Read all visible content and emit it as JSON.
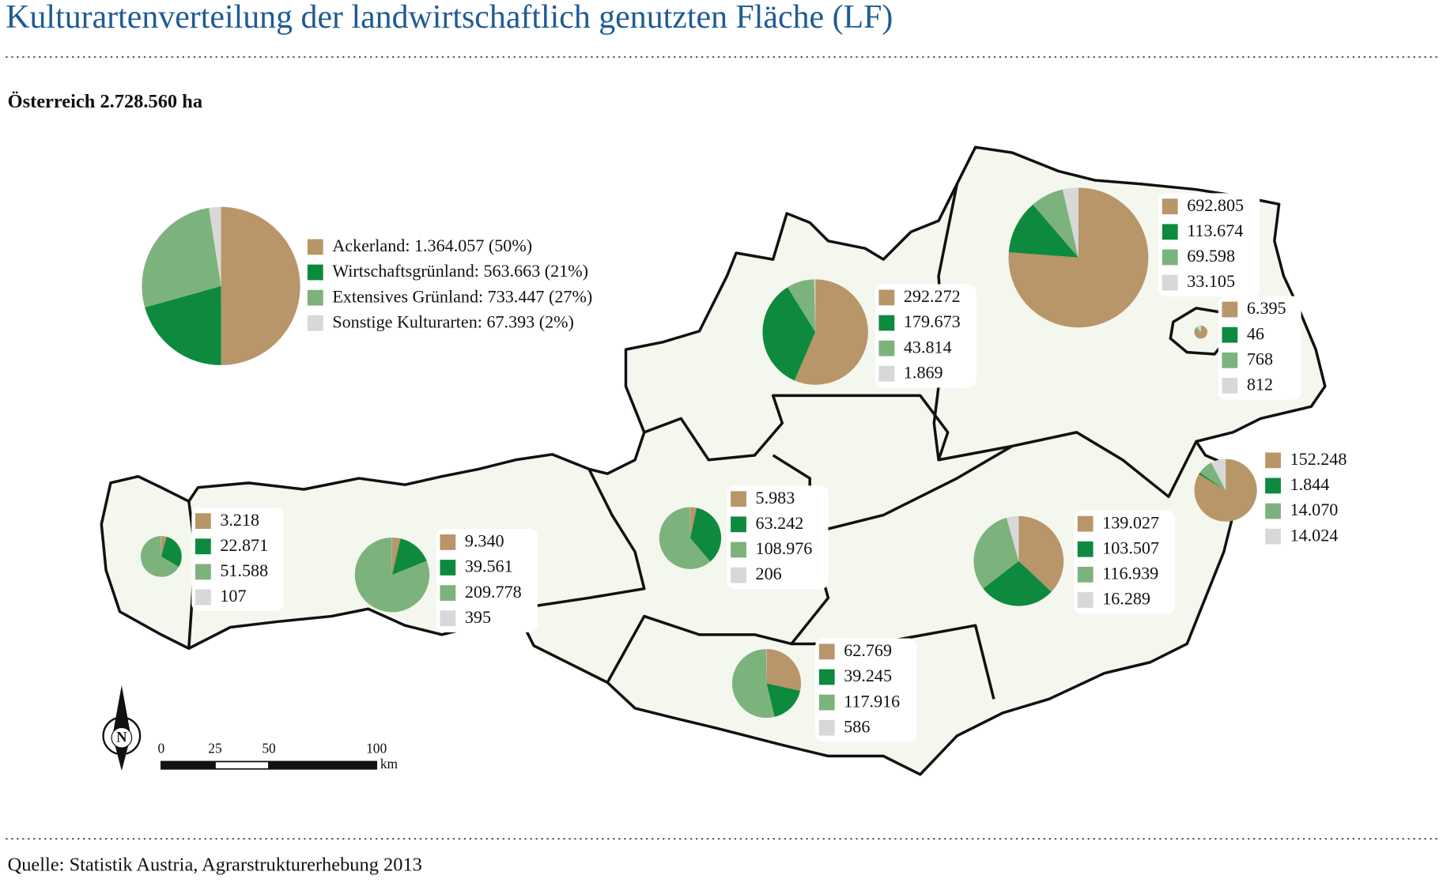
{
  "title": "Kulturartenverteilung der landwirtschaftlich genutzten Fläche (LF)",
  "subtitle": "Österreich 2.728.560 ha",
  "source": "Quelle: Statistik Austria, Agrarstrukturerhebung 2013",
  "colors": [
    "#b9956a",
    "#0d8a3e",
    "#7cb27b",
    "#d8d8d8"
  ],
  "total": {
    "values": [
      1364057,
      563663,
      733447,
      67393
    ],
    "labels": [
      "Ackerland: 1.364.057 (50%)",
      "Wirtschaftsgrünland: 563.663 (21%)",
      "Extensives Grünland: 733.447 (27%)",
      "Sonstige Kulturarten: 67.393 (2%)"
    ]
  },
  "regions": [
    {
      "values": [
        3218,
        22871,
        51588,
        107
      ],
      "value_labels": [
        "3.218",
        "22.871",
        "51.588",
        "107"
      ]
    },
    {
      "values": [
        9340,
        39561,
        209778,
        395
      ],
      "value_labels": [
        "9.340",
        "39.561",
        "209.778",
        "395"
      ]
    },
    {
      "values": [
        5983,
        63242,
        108976,
        206
      ],
      "value_labels": [
        "5.983",
        "63.242",
        "108.976",
        "206"
      ]
    },
    {
      "values": [
        292272,
        179673,
        43814,
        1869
      ],
      "value_labels": [
        "292.272",
        "179.673",
        "43.814",
        "1.869"
      ]
    },
    {
      "values": [
        692805,
        113674,
        69598,
        33105
      ],
      "value_labels": [
        "692.805",
        "113.674",
        "69.598",
        "33.105"
      ]
    },
    {
      "values": [
        6395,
        46,
        768,
        812
      ],
      "value_labels": [
        "6.395",
        "46",
        "768",
        "812"
      ]
    },
    {
      "values": [
        152248,
        1844,
        14070,
        14024
      ],
      "value_labels": [
        "152.248",
        "1.844",
        "14.070",
        "14.024"
      ]
    },
    {
      "values": [
        139027,
        103507,
        116939,
        16289
      ],
      "value_labels": [
        "139.027",
        "103.507",
        "116.939",
        "16.289"
      ]
    },
    {
      "values": [
        62769,
        39245,
        117916,
        586
      ],
      "value_labels": [
        "62.769",
        "39.245",
        "117.916",
        "586"
      ]
    }
  ],
  "scale": {
    "ticks": [
      0,
      25,
      50,
      100
    ],
    "unit": "km"
  },
  "north": "N"
}
